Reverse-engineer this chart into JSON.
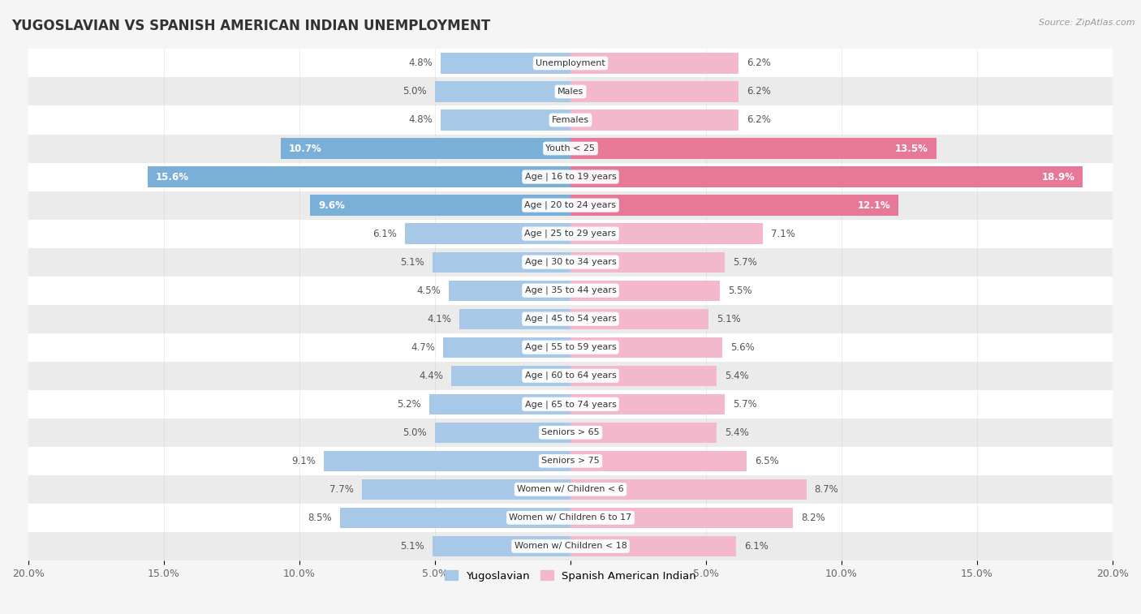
{
  "title": "YUGOSLAVIAN VS SPANISH AMERICAN INDIAN UNEMPLOYMENT",
  "source": "Source: ZipAtlas.com",
  "categories": [
    "Unemployment",
    "Males",
    "Females",
    "Youth < 25",
    "Age | 16 to 19 years",
    "Age | 20 to 24 years",
    "Age | 25 to 29 years",
    "Age | 30 to 34 years",
    "Age | 35 to 44 years",
    "Age | 45 to 54 years",
    "Age | 55 to 59 years",
    "Age | 60 to 64 years",
    "Age | 65 to 74 years",
    "Seniors > 65",
    "Seniors > 75",
    "Women w/ Children < 6",
    "Women w/ Children 6 to 17",
    "Women w/ Children < 18"
  ],
  "yugoslavian": [
    4.8,
    5.0,
    4.8,
    10.7,
    15.6,
    9.6,
    6.1,
    5.1,
    4.5,
    4.1,
    4.7,
    4.4,
    5.2,
    5.0,
    9.1,
    7.7,
    8.5,
    5.1
  ],
  "spanish_american_indian": [
    6.2,
    6.2,
    6.2,
    13.5,
    18.9,
    12.1,
    7.1,
    5.7,
    5.5,
    5.1,
    5.6,
    5.4,
    5.7,
    5.4,
    6.5,
    8.7,
    8.2,
    6.1
  ],
  "yugoslav_color_normal": "#a8c8e8",
  "yugoslav_color_highlight": "#7ab0d8",
  "spanish_color_normal": "#f4b8cc",
  "spanish_color_highlight": "#e87898",
  "row_bg_white": "#ffffff",
  "row_bg_gray": "#ebebeb",
  "outer_bg": "#f5f5f5",
  "axis_max": 20.0,
  "legend_labels": [
    "Yugoslavian",
    "Spanish American Indian"
  ],
  "legend_colors": [
    "#a8c8e8",
    "#f4b8cc"
  ],
  "highlight_rows": [
    3,
    4,
    5
  ],
  "value_label_color_normal": "#555555",
  "value_label_color_highlight": "#ffffff"
}
